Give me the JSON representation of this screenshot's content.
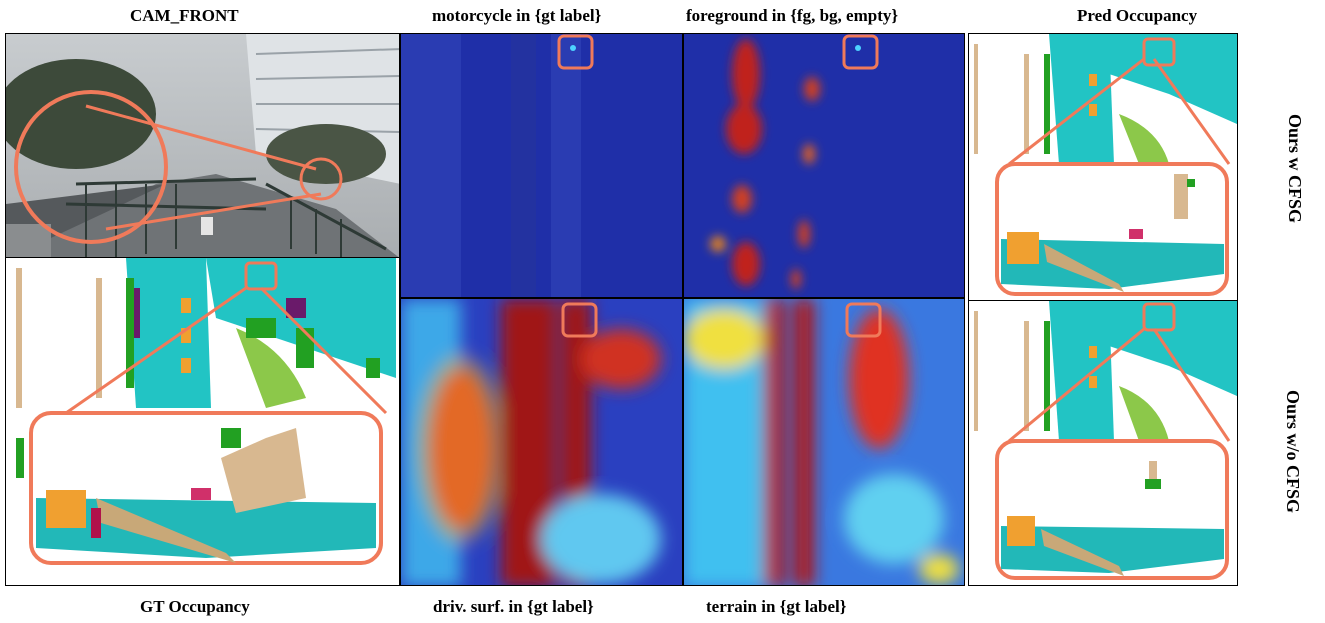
{
  "labels": {
    "cam_front": "CAM_FRONT",
    "motorcycle": "motorcycle in {gt label}",
    "foreground": "foreground in {fg, bg, empty}",
    "pred_occupancy": "Pred Occupancy",
    "gt_occupancy": "GT Occupancy",
    "driv_surf": "driv. surf. in {gt label}",
    "terrain": "terrain in {gt label}",
    "ours_w": "Ours w CFSG",
    "ours_wo": "Ours w/o CFSG"
  },
  "colors": {
    "highlight": "#f07a5a",
    "drivable": "#22c4c4",
    "vegetation": "#22a022",
    "manmade": "#d8b890",
    "barrier": "#f0a030",
    "heat_low": "#1a2a9a",
    "heat_high": "#b01818"
  }
}
